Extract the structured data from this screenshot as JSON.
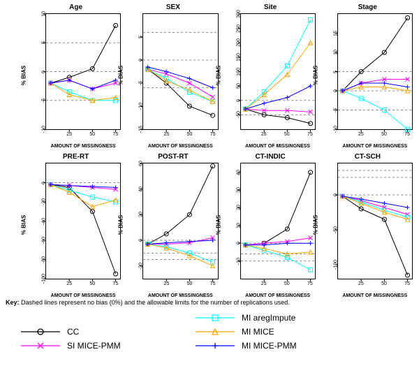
{
  "background_color": "#ffffff",
  "grid_dash": "3,3",
  "line_width": 1,
  "marker_size": 3,
  "xticks": [
    25,
    50,
    75
  ],
  "xlim": [
    0,
    80
  ],
  "xlabel": "AMOUNT OF MISSINGNESS",
  "ylabel": "% BIAS",
  "title_fontsize": 10,
  "label_fontsize": 8,
  "tick_fontsize": 7,
  "legend_fontsize": 12,
  "key_text_prefix": "Key:",
  "key_text": " Dashed lines represent no bias (0%) and the allowable limits for the number of replications used.",
  "series": {
    "CC": {
      "label": "CC",
      "color": "#000000",
      "marker": "circle"
    },
    "SI": {
      "label": "SI MICE-PMM",
      "color": "#ff00ff",
      "marker": "x"
    },
    "MI_areg": {
      "label": "MI aregImpute",
      "color": "#00ffff",
      "marker": "square"
    },
    "MI_mice": {
      "label": "MI MICE",
      "color": "#ffa500",
      "marker": "triangle"
    },
    "MI_mice_pmm": {
      "label": "MI MICE-PMM",
      "color": "#0000ff",
      "marker": "plus"
    }
  },
  "legend_layout": [
    [
      "",
      "MI_areg"
    ],
    [
      "CC",
      "MI_mice"
    ],
    [
      "SI",
      "MI_mice_pmm"
    ]
  ],
  "panels": [
    {
      "title": "Age",
      "ylim": [
        -10,
        10
      ],
      "yticks": [
        -10,
        -5,
        0,
        5,
        10
      ],
      "ref_lines": [
        0,
        5,
        -5
      ],
      "x": [
        5,
        25,
        50,
        75
      ],
      "series": {
        "CC": [
          -2.0,
          -1.0,
          0.5,
          8.0
        ],
        "SI": [
          -2.0,
          -1.5,
          -3.0,
          -2.0
        ],
        "MI_areg": [
          -2.0,
          -3.5,
          -5.0,
          -5.0
        ],
        "MI_mice": [
          -2.0,
          -4.0,
          -5.0,
          -4.5
        ],
        "MI_mice_pmm": [
          -2.0,
          -1.5,
          -3.0,
          -1.5
        ]
      }
    },
    {
      "title": "SEX",
      "ylim": [
        -15,
        10
      ],
      "yticks": [
        -15,
        -10,
        -5,
        0,
        5
      ],
      "ref_lines": [
        0,
        6,
        -6
      ],
      "x": [
        5,
        25,
        50,
        75
      ],
      "series": {
        "CC": [
          -2.0,
          -5.0,
          -10.0,
          -12.0
        ],
        "SI": [
          -2.0,
          -3.0,
          -5.0,
          -8.0
        ],
        "MI_areg": [
          -2.0,
          -4.0,
          -7.0,
          -9.0
        ],
        "MI_mice": [
          -2.0,
          -4.5,
          -6.5,
          -9.0
        ],
        "MI_mice_pmm": [
          -1.5,
          -2.5,
          -4.0,
          -6.0
        ]
      }
    },
    {
      "title": "Site",
      "ylim": [
        -100,
        300
      ],
      "yticks": [
        -50,
        0,
        50,
        100,
        150,
        200,
        250,
        300
      ],
      "ref_lines": [
        0,
        -50
      ],
      "x": [
        5,
        25,
        50,
        75
      ],
      "series": {
        "CC": [
          -30,
          -50,
          -60,
          -80
        ],
        "SI": [
          -30,
          -35,
          -35,
          -40
        ],
        "MI_areg": [
          -30,
          30,
          120,
          280
        ],
        "MI_mice": [
          -30,
          20,
          90,
          200
        ],
        "MI_mice_pmm": [
          -30,
          -10,
          10,
          50
        ]
      }
    },
    {
      "title": "Stage",
      "ylim": [
        -10,
        20
      ],
      "yticks": [
        -10,
        -5,
        0,
        5,
        10,
        15
      ],
      "ref_lines": [
        0,
        5,
        -5
      ],
      "x": [
        5,
        25,
        50,
        75
      ],
      "series": {
        "CC": [
          0,
          5,
          10,
          19
        ],
        "SI": [
          0,
          2,
          3,
          3
        ],
        "MI_areg": [
          0,
          -2,
          -5,
          -10
        ],
        "MI_mice": [
          0,
          1,
          1,
          0
        ],
        "MI_mice_pmm": [
          0,
          2,
          2,
          1
        ]
      }
    },
    {
      "title": "PRE-RT",
      "ylim": [
        -100,
        20
      ],
      "yticks": [
        -100,
        -80,
        -60,
        -40,
        -20,
        0
      ],
      "ref_lines": [
        0
      ],
      "x": [
        5,
        25,
        50,
        75
      ],
      "series": {
        "CC": [
          -2,
          -5,
          -30,
          -95
        ],
        "SI": [
          -2,
          -3,
          -5,
          -7
        ],
        "MI_areg": [
          -2,
          -8,
          -15,
          -20
        ],
        "MI_mice": [
          -2,
          -10,
          -25,
          -18
        ],
        "MI_mice_pmm": [
          -2,
          -3,
          -4,
          -5
        ]
      }
    },
    {
      "title": "POST-RT",
      "ylim": [
        -30,
        60
      ],
      "yticks": [
        -20,
        0,
        20,
        40,
        60
      ],
      "ref_lines": [
        0,
        -10,
        -15
      ],
      "x": [
        5,
        25,
        50,
        75
      ],
      "series": {
        "CC": [
          -3,
          5,
          20,
          58
        ],
        "SI": [
          -3,
          -3,
          -2,
          2
        ],
        "MI_areg": [
          -3,
          -5,
          -10,
          -17
        ],
        "MI_mice": [
          -3,
          -6,
          -12,
          -20
        ],
        "MI_mice_pmm": [
          -3,
          -2,
          -1,
          0
        ]
      }
    },
    {
      "title": "CT-INDIC",
      "ylim": [
        -20,
        45
      ],
      "yticks": [
        -10,
        0,
        10,
        20,
        30,
        40
      ],
      "ref_lines": [
        0,
        -10,
        -6
      ],
      "x": [
        5,
        25,
        50,
        75
      ],
      "series": {
        "CC": [
          -1,
          0,
          8,
          40
        ],
        "SI": [
          -1,
          0,
          1,
          3
        ],
        "MI_areg": [
          -1,
          -4,
          -8,
          -15
        ],
        "MI_mice": [
          -1,
          -3,
          -6,
          -5
        ],
        "MI_mice_pmm": [
          -1,
          -1,
          0,
          0
        ]
      }
    },
    {
      "title": "CT-SCH",
      "ylim": [
        -120,
        45
      ],
      "yticks": [
        -100,
        -50,
        0
      ],
      "ref_lines": [
        0,
        25,
        35
      ],
      "x": [
        5,
        25,
        50,
        75
      ],
      "series": {
        "CC": [
          -2,
          -20,
          -35,
          -115
        ],
        "SI": [
          -2,
          -8,
          -18,
          -28
        ],
        "MI_areg": [
          -2,
          -10,
          -22,
          -32
        ],
        "MI_mice": [
          -2,
          -12,
          -25,
          -35
        ],
        "MI_mice_pmm": [
          -2,
          -6,
          -12,
          -18
        ]
      }
    }
  ]
}
